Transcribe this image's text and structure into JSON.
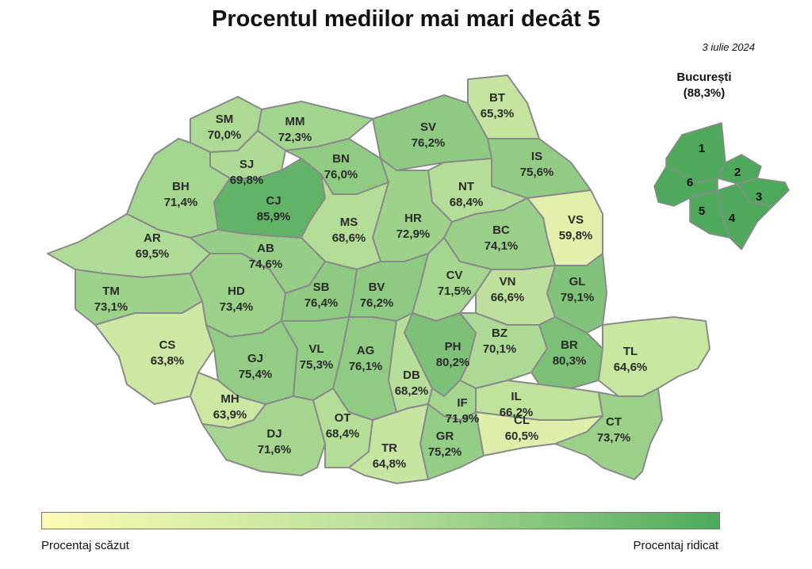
{
  "title": "Procentul mediilor mai mari decât 5",
  "date": "3 iulie 2024",
  "colors": {
    "low": "#fbfbb4",
    "mid": "#b9e09b",
    "high": "#4ea95c",
    "border": "#8a8a8a"
  },
  "bucuresti": {
    "name": "București",
    "value": "(88,3%)",
    "sectors": [
      "1",
      "2",
      "3",
      "4",
      "5",
      "6"
    ]
  },
  "counties": [
    {
      "code": "SM",
      "value": "70,0%",
      "pct": 70.0
    },
    {
      "code": "MM",
      "value": "72,3%",
      "pct": 72.3
    },
    {
      "code": "SV",
      "value": "76,2%",
      "pct": 76.2
    },
    {
      "code": "BT",
      "value": "65,3%",
      "pct": 65.3
    },
    {
      "code": "SJ",
      "value": "69,8%",
      "pct": 69.8
    },
    {
      "code": "BN",
      "value": "76,0%",
      "pct": 76.0
    },
    {
      "code": "IS",
      "value": "75,6%",
      "pct": 75.6
    },
    {
      "code": "BH",
      "value": "71,4%",
      "pct": 71.4
    },
    {
      "code": "CJ",
      "value": "85,9%",
      "pct": 85.9
    },
    {
      "code": "NT",
      "value": "68,4%",
      "pct": 68.4
    },
    {
      "code": "VS",
      "value": "59,8%",
      "pct": 59.8
    },
    {
      "code": "HR",
      "value": "72,9%",
      "pct": 72.9
    },
    {
      "code": "MS",
      "value": "68,6%",
      "pct": 68.6
    },
    {
      "code": "AR",
      "value": "69,5%",
      "pct": 69.5
    },
    {
      "code": "AB",
      "value": "74,6%",
      "pct": 74.6
    },
    {
      "code": "BC",
      "value": "74,1%",
      "pct": 74.1
    },
    {
      "code": "TM",
      "value": "73,1%",
      "pct": 73.1
    },
    {
      "code": "HD",
      "value": "73,4%",
      "pct": 73.4
    },
    {
      "code": "SB",
      "value": "76,4%",
      "pct": 76.4
    },
    {
      "code": "BV",
      "value": "76,2%",
      "pct": 76.2
    },
    {
      "code": "CV",
      "value": "71,5%",
      "pct": 71.5
    },
    {
      "code": "VN",
      "value": "66,6%",
      "pct": 66.6
    },
    {
      "code": "GL",
      "value": "79,1%",
      "pct": 79.1
    },
    {
      "code": "CS",
      "value": "63,8%",
      "pct": 63.8
    },
    {
      "code": "GJ",
      "value": "75,4%",
      "pct": 75.4
    },
    {
      "code": "VL",
      "value": "75,3%",
      "pct": 75.3
    },
    {
      "code": "AG",
      "value": "76,1%",
      "pct": 76.1
    },
    {
      "code": "PH",
      "value": "80,2%",
      "pct": 80.2
    },
    {
      "code": "BZ",
      "value": "70,1%",
      "pct": 70.1
    },
    {
      "code": "BR",
      "value": "80,3%",
      "pct": 80.3
    },
    {
      "code": "TL",
      "value": "64,6%",
      "pct": 64.6
    },
    {
      "code": "DB",
      "value": "68,2%",
      "pct": 68.2
    },
    {
      "code": "MH",
      "value": "63,9%",
      "pct": 63.9
    },
    {
      "code": "IL",
      "value": "66,2%",
      "pct": 66.2
    },
    {
      "code": "IF",
      "value": "71,9%",
      "pct": 71.9
    },
    {
      "code": "DJ",
      "value": "71,6%",
      "pct": 71.6
    },
    {
      "code": "OT",
      "value": "68,4%",
      "pct": 68.4
    },
    {
      "code": "TR",
      "value": "64,8%",
      "pct": 64.8
    },
    {
      "code": "GR",
      "value": "75,2%",
      "pct": 75.2
    },
    {
      "code": "CL",
      "value": "60,5%",
      "pct": 60.5
    },
    {
      "code": "CT",
      "value": "73,7%",
      "pct": 73.7
    }
  ],
  "legend": {
    "low_label": "Procentaj scăzut",
    "high_label": "Procentaj ridicat"
  }
}
